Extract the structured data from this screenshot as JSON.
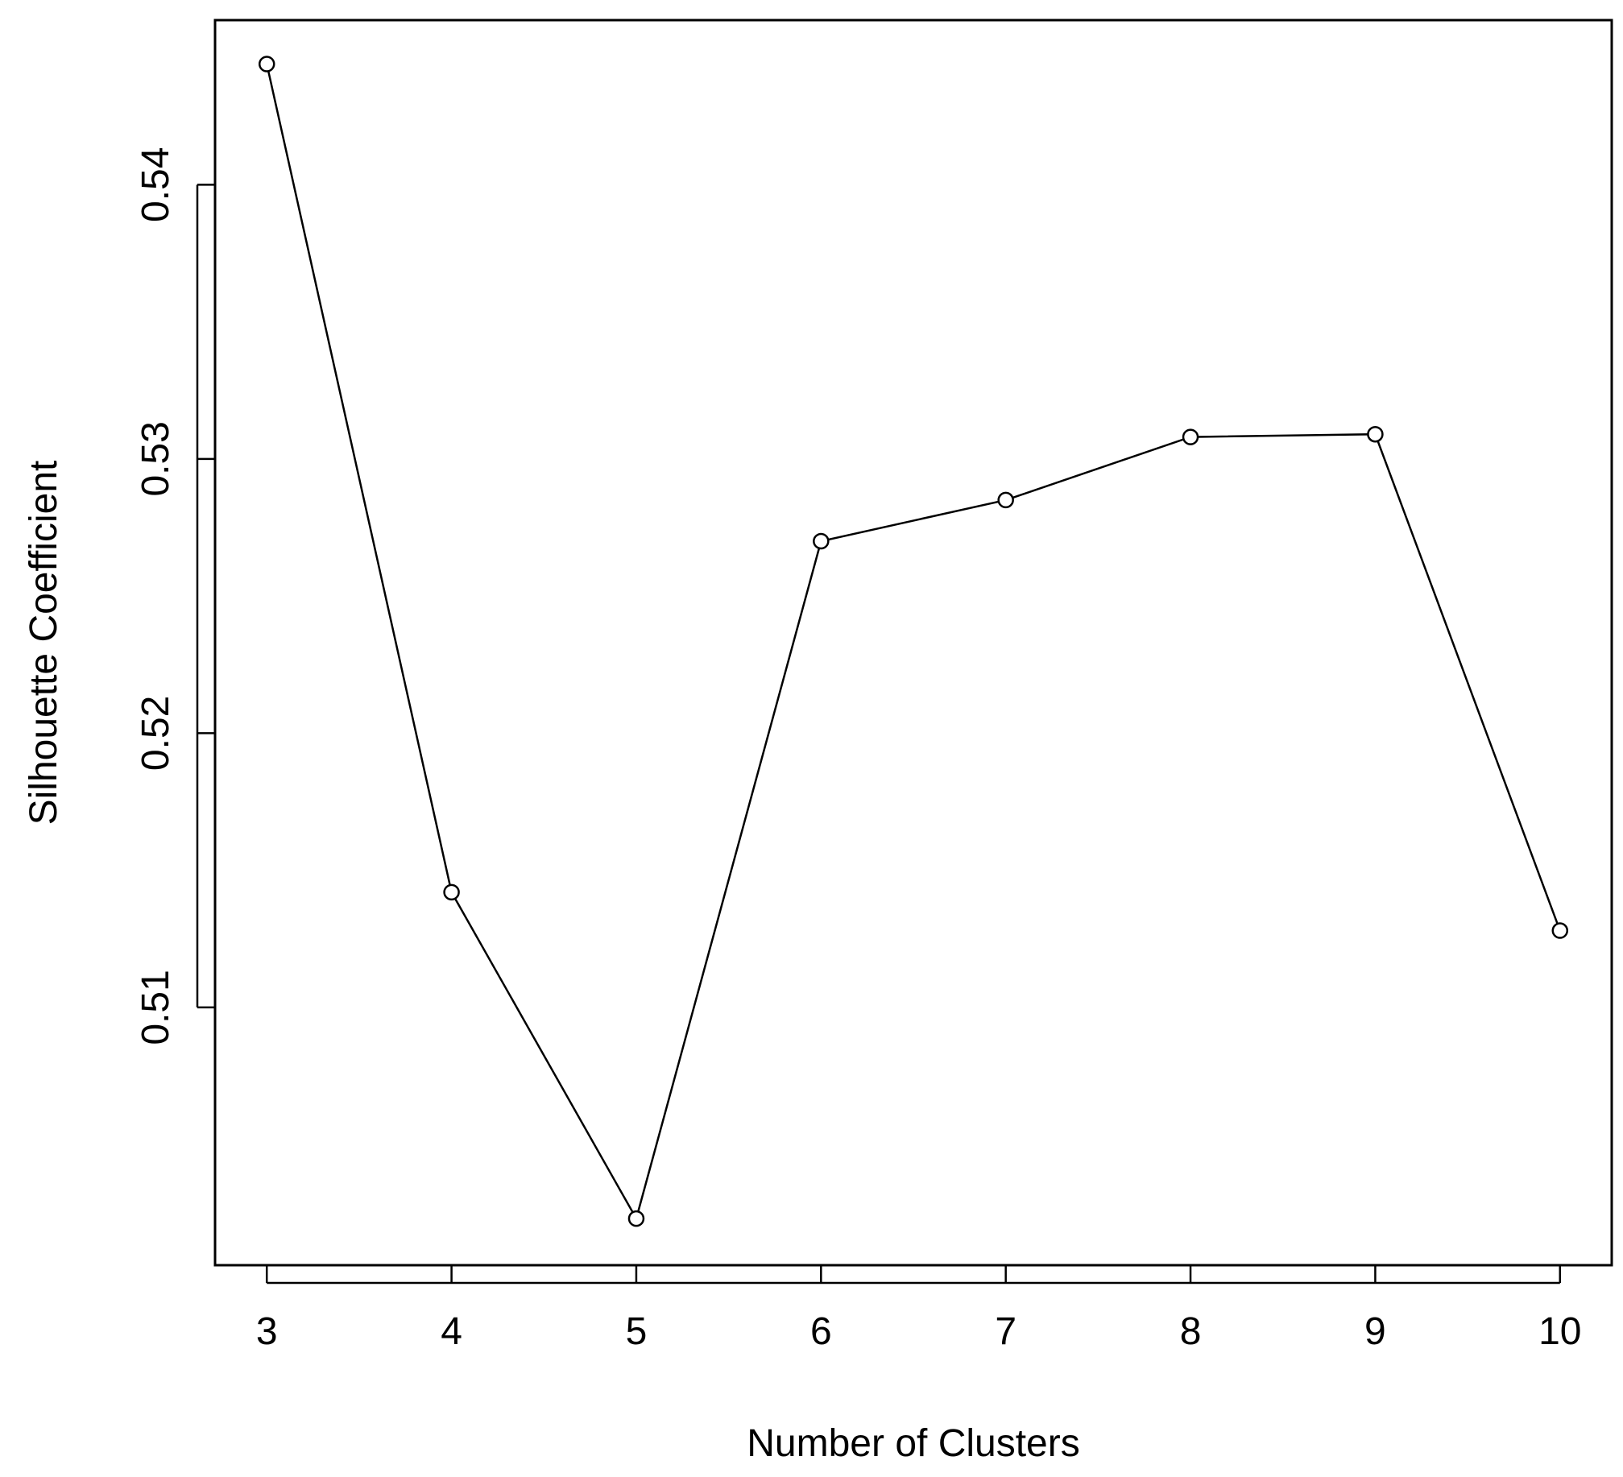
{
  "chart_data": {
    "type": "line",
    "title": "",
    "xlabel": "Number of Clusters",
    "ylabel": "Silhouette Coefficient",
    "x": [
      3,
      4,
      5,
      6,
      7,
      8,
      9,
      10
    ],
    "series": [
      {
        "values": [
          0.5444,
          0.5142,
          0.5023,
          0.527,
          0.5285,
          0.5308,
          0.5309,
          0.5128
        ]
      }
    ],
    "xticks": [
      "3",
      "4",
      "5",
      "6",
      "7",
      "8",
      "9",
      "10"
    ],
    "yticks": [
      "0.51",
      "0.52",
      "0.53",
      "0.54"
    ],
    "ytick_values": [
      0.51,
      0.52,
      0.53,
      0.54
    ],
    "xlim": [
      2.72,
      10.28
    ],
    "ylim": [
      0.5006,
      0.546
    ],
    "grid": false,
    "legend": "none",
    "marker": "open-circle",
    "line_color": "#000000"
  }
}
